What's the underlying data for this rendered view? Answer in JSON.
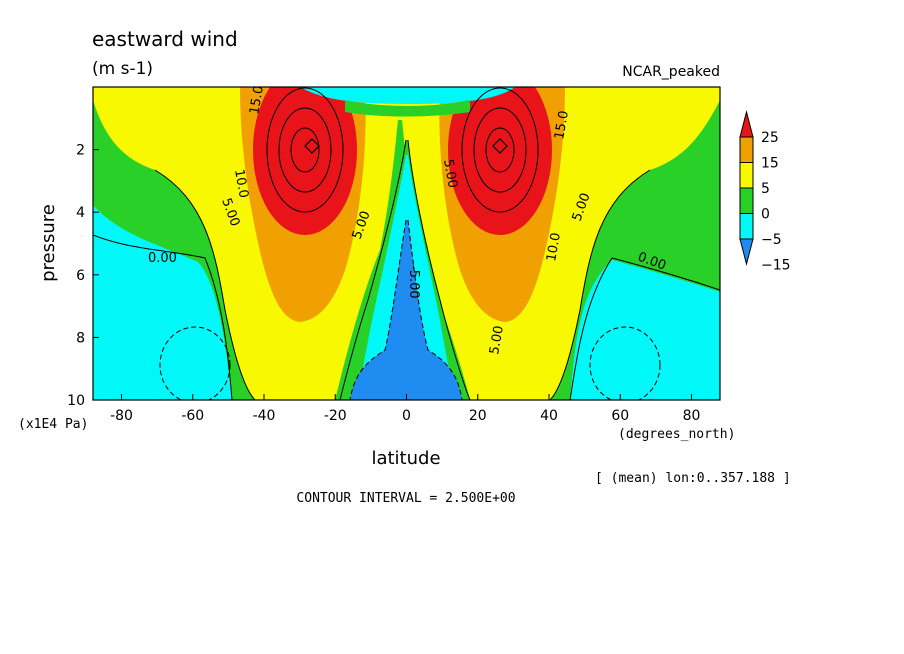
{
  "chart_data": {
    "type": "contour",
    "title": "eastward wind",
    "units": "(m s-1)",
    "dataset_label": "NCAR_peaked",
    "xlabel": "latitude",
    "x_units": "(degrees_north)",
    "ylabel": "pressure",
    "y_units": "(x1E4 Pa)",
    "xlim": [
      -88,
      88
    ],
    "ylim": [
      10,
      0
    ],
    "x_ticks": [
      "-80",
      "-60",
      "-40",
      "-20",
      "0",
      "20",
      "40",
      "60",
      "80"
    ],
    "x_tick_values": [
      -80,
      -60,
      -40,
      -20,
      0,
      20,
      40,
      60,
      80
    ],
    "y_ticks": [
      "2",
      "4",
      "6",
      "8",
      "10"
    ],
    "y_tick_values": [
      2,
      4,
      6,
      8,
      10
    ],
    "contour_interval_text": "CONTOUR INTERVAL = 2.500E+00",
    "subset_note": "[ (mean) lon:0..357.188 ]",
    "colorbar": {
      "labels": [
        "25",
        "15",
        "5",
        "0",
        "−5",
        "−15"
      ],
      "levels": [
        25,
        15,
        5,
        0,
        -5,
        -15
      ],
      "colors": [
        "#e8141a",
        "#f0a000",
        "#f8f800",
        "#28d028",
        "#00f8f8",
        "#1e8cf0"
      ]
    },
    "contour_labels": [
      "15.0",
      "10.0",
      "5.00",
      "0.00",
      "5.00",
      "0.00",
      "10.0",
      "15.0",
      "-5.00",
      "5.00",
      "5.00",
      "5.00"
    ],
    "jet_maxima": [
      {
        "lat": -27,
        "pressure": 2,
        "value": 30
      },
      {
        "lat": 27,
        "pressure": 2,
        "value": 30
      }
    ]
  }
}
